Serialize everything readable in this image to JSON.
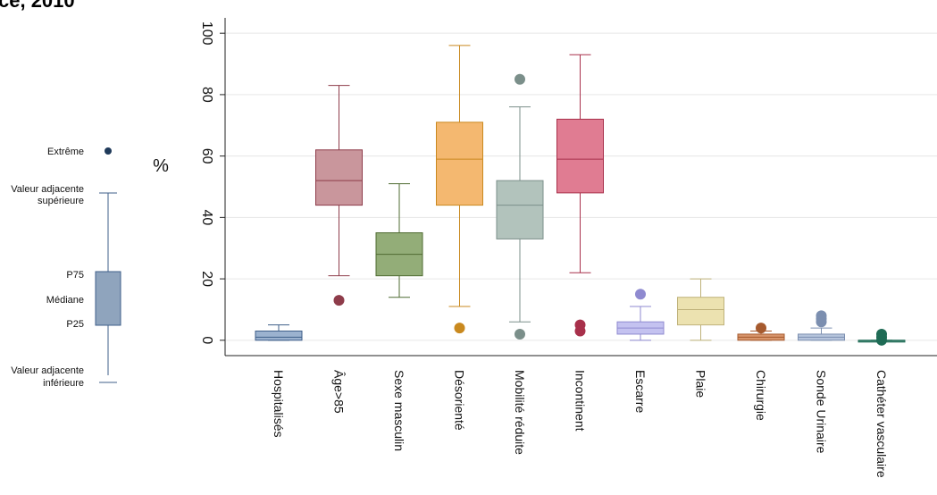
{
  "header": {
    "title_fragment": "ce, 2010"
  },
  "legend": {
    "extreme": "Extrême",
    "upper_adjacent_line1": "Valeur adjacente",
    "upper_adjacent_line2": "supérieure",
    "p75": "P75",
    "median": "Médiane",
    "p25": "P25",
    "lower_adjacent_line1": "Valeur adjacente",
    "lower_adjacent_line2": "inférieure"
  },
  "chart_data": {
    "type": "box",
    "ylabel": "%",
    "xlabel": "",
    "ylim": [
      -5,
      105
    ],
    "yticks": [
      0,
      20,
      40,
      60,
      80,
      100
    ],
    "grid": true,
    "categories": [
      "Hospitalisés",
      "Âge>85",
      "Sexe masculin",
      "Désorienté",
      "Mobilité réduite",
      "Incontinent",
      "Escarre",
      "Plaie",
      "Chirurgie",
      "Sonde Urinaire",
      "Cathéter vasculaire"
    ],
    "colors": [
      "#9bb2cf",
      "#c9969c",
      "#93ad78",
      "#f4b870",
      "#b2c3bc",
      "#e07c92",
      "#c4c2f0",
      "#ece2b0",
      "#d7946a",
      "#b6c4dc",
      "#4d8f7c"
    ],
    "stroke_colors": [
      "#3f5f8a",
      "#8e3c4a",
      "#4f6b32",
      "#c9891f",
      "#7b8f8a",
      "#a8304b",
      "#8f8ad0",
      "#bfb27a",
      "#a65a2e",
      "#7c8fb0",
      "#1f6b55"
    ],
    "boxes": [
      {
        "category": "Hospitalisés",
        "whisker_low": 0,
        "q1": 0,
        "median": 1,
        "q3": 3,
        "whisker_high": 5,
        "outliers": []
      },
      {
        "category": "Âge>85",
        "whisker_low": 21,
        "q1": 44,
        "median": 52,
        "q3": 62,
        "whisker_high": 83,
        "outliers": [
          13
        ]
      },
      {
        "category": "Sexe masculin",
        "whisker_low": 14,
        "q1": 21,
        "median": 28,
        "q3": 35,
        "whisker_high": 51,
        "outliers": []
      },
      {
        "category": "Désorienté",
        "whisker_low": 11,
        "q1": 44,
        "median": 59,
        "q3": 71,
        "whisker_high": 96,
        "outliers": [
          4
        ]
      },
      {
        "category": "Mobilité réduite",
        "whisker_low": 6,
        "q1": 33,
        "median": 44,
        "q3": 52,
        "whisker_high": 76,
        "outliers": [
          2,
          85
        ]
      },
      {
        "category": "Incontinent",
        "whisker_low": 22,
        "q1": 48,
        "median": 59,
        "q3": 72,
        "whisker_high": 93,
        "outliers": [
          3,
          5
        ]
      },
      {
        "category": "Escarre",
        "whisker_low": 0,
        "q1": 2,
        "median": 4,
        "q3": 6,
        "whisker_high": 11,
        "outliers": [
          15
        ]
      },
      {
        "category": "Plaie",
        "whisker_low": 0,
        "q1": 5,
        "median": 10,
        "q3": 14,
        "whisker_high": 20,
        "outliers": []
      },
      {
        "category": "Chirurgie",
        "whisker_low": 0,
        "q1": 0,
        "median": 1,
        "q3": 2,
        "whisker_high": 3,
        "outliers": [
          4
        ]
      },
      {
        "category": "Sonde Urinaire",
        "whisker_low": 0,
        "q1": 0,
        "median": 1,
        "q3": 2,
        "whisker_high": 4,
        "outliers": [
          6,
          7,
          8
        ]
      },
      {
        "category": "Cathéter vasculaire",
        "whisker_low": 0,
        "q1": 0,
        "median": 0,
        "q3": 0,
        "whisker_high": 0,
        "outliers": [
          0,
          1,
          2
        ]
      }
    ]
  }
}
